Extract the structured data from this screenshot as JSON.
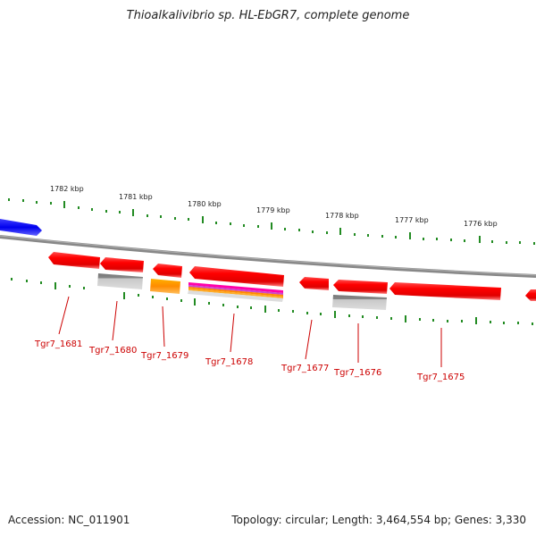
{
  "title": "Thioalkalivibrio sp. HL-EbGR7, complete genome",
  "footer": {
    "accession": "Accession: NC_011901",
    "info": "Topology: circular; Length: 3,464,554 bp; Genes: 3,330"
  },
  "scale_labels": [
    "1782 kbp",
    "1781 kbp",
    "1780 kbp",
    "1779 kbp",
    "1778 kbp",
    "1777 kbp",
    "1776 kbp"
  ],
  "gene_labels": [
    "Tgr7_1681",
    "Tgr7_1680",
    "Tgr7_1679",
    "Tgr7_1678",
    "Tgr7_1677",
    "Tgr7_1676",
    "Tgr7_1675"
  ],
  "colors": {
    "gene": "#ff0000",
    "gene_light": "#ff6666",
    "gene_dark": "#cc0000",
    "label": "#cc0000",
    "backbone": "#888888",
    "tick": "#228b22",
    "blue_gene": "#0000ff",
    "grey_feature": "#bbbbbb",
    "orange_feature": "#ff9900"
  }
}
